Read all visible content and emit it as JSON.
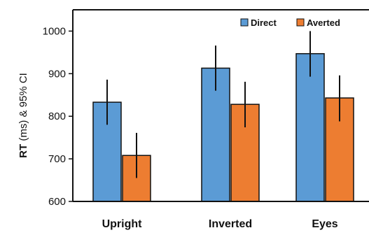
{
  "chart_data": {
    "type": "bar",
    "categories": [
      "Upright",
      "Inverted",
      "Eyes"
    ],
    "series": [
      {
        "name": "Direct",
        "color": "#5B9BD5",
        "values": [
          833,
          913,
          947
        ],
        "ci_low": [
          780,
          860,
          893
        ],
        "ci_high": [
          886,
          966,
          1000
        ]
      },
      {
        "name": "Averted",
        "color": "#ED7D31",
        "values": [
          708,
          828,
          843
        ],
        "ci_low": [
          655,
          774,
          788
        ],
        "ci_high": [
          761,
          881,
          896
        ]
      }
    ],
    "ylabel_main": "RT",
    "ylabel_rest": " (ms) & 95% CI",
    "ylim": [
      600,
      1050
    ],
    "yticks": [
      600,
      700,
      800,
      900,
      1000
    ],
    "legend_position": "top-right",
    "grid": false
  }
}
